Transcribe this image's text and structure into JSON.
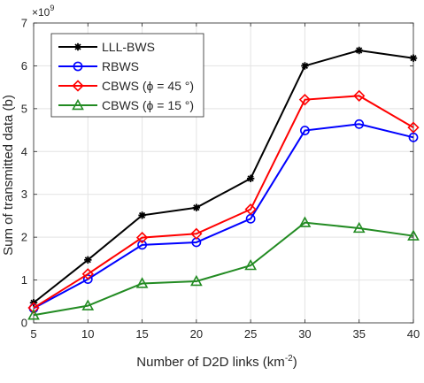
{
  "chart_data": {
    "type": "line",
    "title": "",
    "xlabel_main": "Number of D2D links (km",
    "xlabel_sup": "-2",
    "xlabel_close": ")",
    "ylabel": "Sum of transmitted data (b)",
    "y_multiplier_base": "×10",
    "y_multiplier_exp": "9",
    "x": [
      5,
      10,
      15,
      20,
      25,
      30,
      35,
      40
    ],
    "xlim": [
      5,
      40
    ],
    "ylim": [
      0,
      7
    ],
    "x_ticks": [
      "5",
      "10",
      "15",
      "20",
      "25",
      "30",
      "35",
      "40"
    ],
    "y_ticks": [
      "0",
      "1",
      "2",
      "3",
      "4",
      "5",
      "6",
      "7"
    ],
    "grid": true,
    "legend_position": "top-left",
    "series": [
      {
        "name": "LLL-BWS",
        "color": "#000000",
        "marker": "asterisk",
        "values": [
          0.47,
          1.47,
          2.51,
          2.69,
          3.37,
          6.0,
          6.36,
          6.18
        ]
      },
      {
        "name": "RBWS",
        "color": "#0000ff",
        "marker": "circle",
        "values": [
          0.34,
          1.02,
          1.82,
          1.88,
          2.43,
          4.49,
          4.64,
          4.33
        ]
      },
      {
        "name": "CBWS (ϕ = 45 °)",
        "color": "#ff0000",
        "marker": "diamond",
        "values": [
          0.35,
          1.14,
          1.99,
          2.08,
          2.65,
          5.21,
          5.3,
          4.56
        ]
      },
      {
        "name": "CBWS (ϕ = 15 °)",
        "color": "#228b22",
        "marker": "triangle",
        "values": [
          0.18,
          0.4,
          0.92,
          0.97,
          1.34,
          2.34,
          2.21,
          2.03
        ]
      }
    ]
  }
}
